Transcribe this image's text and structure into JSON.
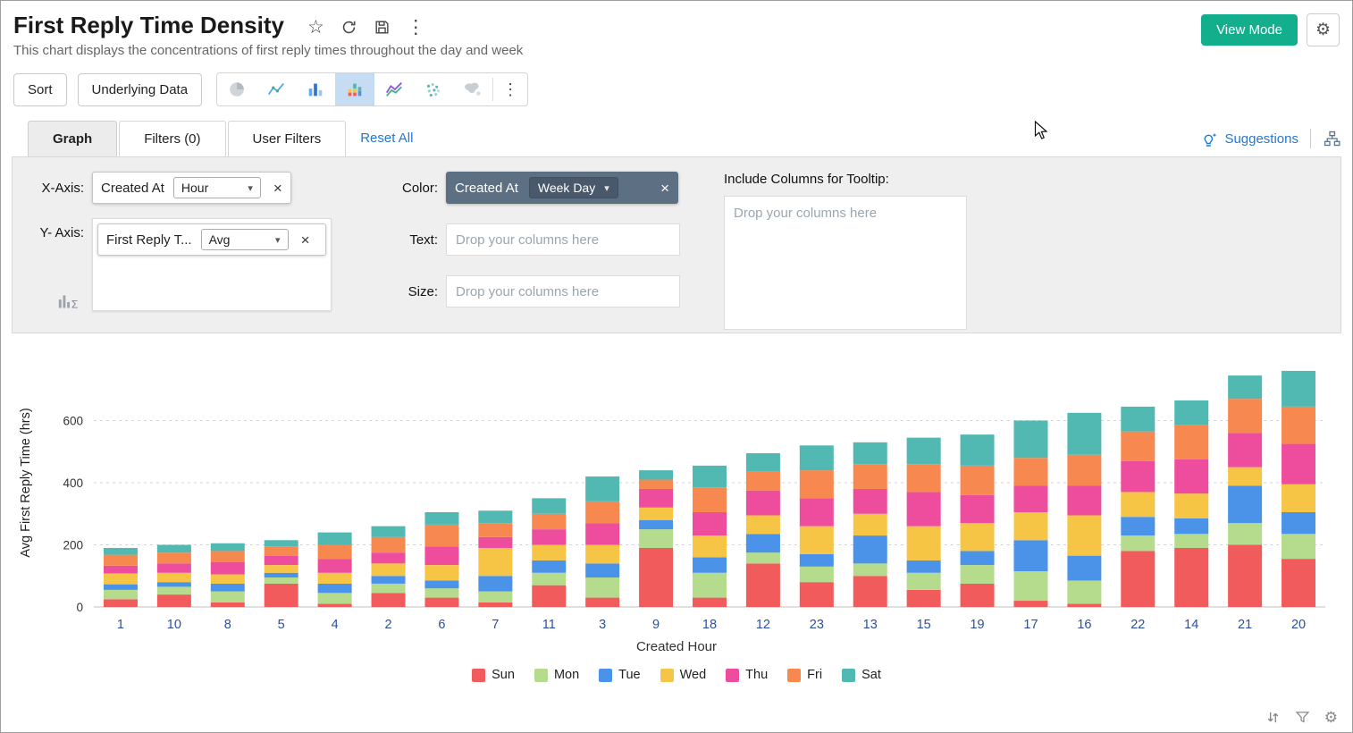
{
  "header": {
    "title": "First Reply Time Density",
    "subtitle": "This chart displays the concentrations of first reply times throughout the day and week",
    "view_mode_label": "View Mode"
  },
  "toolbar": {
    "sort_label": "Sort",
    "underlying_data_label": "Underlying Data"
  },
  "tabs": {
    "graph_label": "Graph",
    "filters_label": "Filters  (0)",
    "user_filters_label": "User Filters",
    "reset_all_label": "Reset All",
    "suggestions_label": "Suggestions"
  },
  "config": {
    "x_axis_label": "X-Axis:",
    "y_axis_label": "Y- Axis:",
    "color_label": "Color:",
    "text_label": "Text:",
    "size_label": "Size:",
    "tooltip_label": "Include Columns for Tooltip:",
    "x_axis_field": "Created At",
    "x_axis_function": "Hour",
    "y_axis_field": "First Reply T...",
    "y_axis_function": "Avg",
    "color_field": "Created At",
    "color_function": "Week Day",
    "drop_placeholder": "Drop your columns here"
  },
  "chart_data": {
    "type": "bar",
    "stacked": true,
    "title": "",
    "xlabel": "Created Hour",
    "ylabel": "Avg First Reply Time (hrs)",
    "ylim": [
      0,
      800
    ],
    "yticks": [
      0,
      200,
      400,
      600
    ],
    "grid": "dashed-horizontal",
    "legend_position": "bottom",
    "categories": [
      "1",
      "10",
      "8",
      "5",
      "4",
      "2",
      "6",
      "7",
      "11",
      "3",
      "9",
      "18",
      "12",
      "23",
      "13",
      "15",
      "19",
      "17",
      "16",
      "22",
      "14",
      "21",
      "20"
    ],
    "series": [
      {
        "name": "Sun",
        "color": "#f15b5b",
        "values": [
          25,
          40,
          15,
          75,
          10,
          45,
          30,
          15,
          70,
          30,
          190,
          30,
          140,
          80,
          100,
          55,
          75,
          20,
          10,
          180,
          190,
          200,
          155
        ]
      },
      {
        "name": "Mon",
        "color": "#b5dc8d",
        "values": [
          30,
          25,
          35,
          20,
          35,
          30,
          30,
          35,
          40,
          65,
          60,
          80,
          35,
          50,
          40,
          55,
          60,
          95,
          75,
          50,
          45,
          70,
          80
        ]
      },
      {
        "name": "Tue",
        "color": "#4b93e8",
        "values": [
          18,
          15,
          25,
          15,
          30,
          25,
          25,
          50,
          40,
          45,
          30,
          50,
          60,
          40,
          90,
          40,
          45,
          100,
          80,
          60,
          50,
          120,
          70
        ]
      },
      {
        "name": "Wed",
        "color": "#f6c546",
        "values": [
          35,
          30,
          30,
          25,
          35,
          40,
          50,
          90,
          50,
          60,
          40,
          70,
          60,
          90,
          70,
          110,
          90,
          90,
          130,
          80,
          80,
          60,
          90
        ]
      },
      {
        "name": "Thu",
        "color": "#ee4d9d",
        "values": [
          25,
          30,
          40,
          30,
          45,
          35,
          60,
          35,
          50,
          70,
          60,
          75,
          80,
          90,
          80,
          110,
          90,
          85,
          95,
          100,
          110,
          110,
          130
        ]
      },
      {
        "name": "Fri",
        "color": "#f78950",
        "values": [
          35,
          35,
          35,
          30,
          45,
          50,
          70,
          45,
          50,
          70,
          30,
          80,
          60,
          90,
          80,
          90,
          95,
          90,
          100,
          95,
          110,
          110,
          120
        ]
      },
      {
        "name": "Sat",
        "color": "#52b8b2",
        "values": [
          22,
          25,
          25,
          20,
          40,
          35,
          40,
          40,
          50,
          80,
          30,
          70,
          60,
          80,
          70,
          85,
          100,
          120,
          135,
          80,
          80,
          75,
          115
        ]
      }
    ]
  }
}
